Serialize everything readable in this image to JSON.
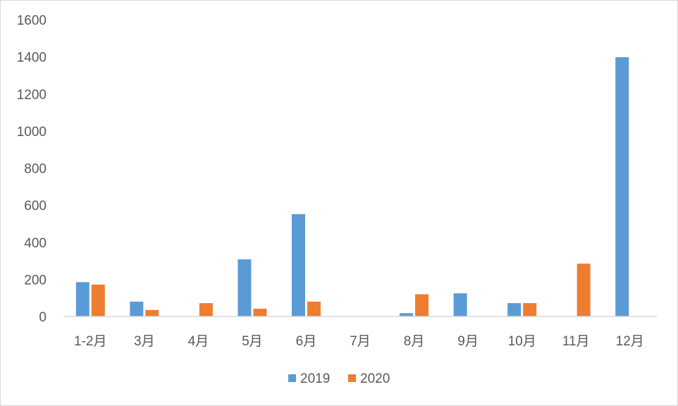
{
  "chart_data": {
    "type": "bar",
    "title": "",
    "xlabel": "",
    "ylabel": "",
    "ylim": [
      0,
      1600
    ],
    "yticks": [
      0,
      200,
      400,
      600,
      800,
      1000,
      1200,
      1400,
      1600
    ],
    "grid": false,
    "legend": "bottom",
    "categories": [
      "1-2月",
      "3月",
      "4月",
      "5月",
      "6月",
      "7月",
      "8月",
      "9月",
      "10月",
      "11月",
      "12月"
    ],
    "series": [
      {
        "name": "2019",
        "color": "#5b9bd5",
        "values": [
          185,
          80,
          0,
          308,
          552,
          0,
          18,
          125,
          72,
          0,
          1398
        ]
      },
      {
        "name": "2020",
        "color": "#ed7d31",
        "values": [
          172,
          35,
          72,
          42,
          80,
          0,
          120,
          0,
          72,
          285,
          0
        ]
      }
    ]
  }
}
